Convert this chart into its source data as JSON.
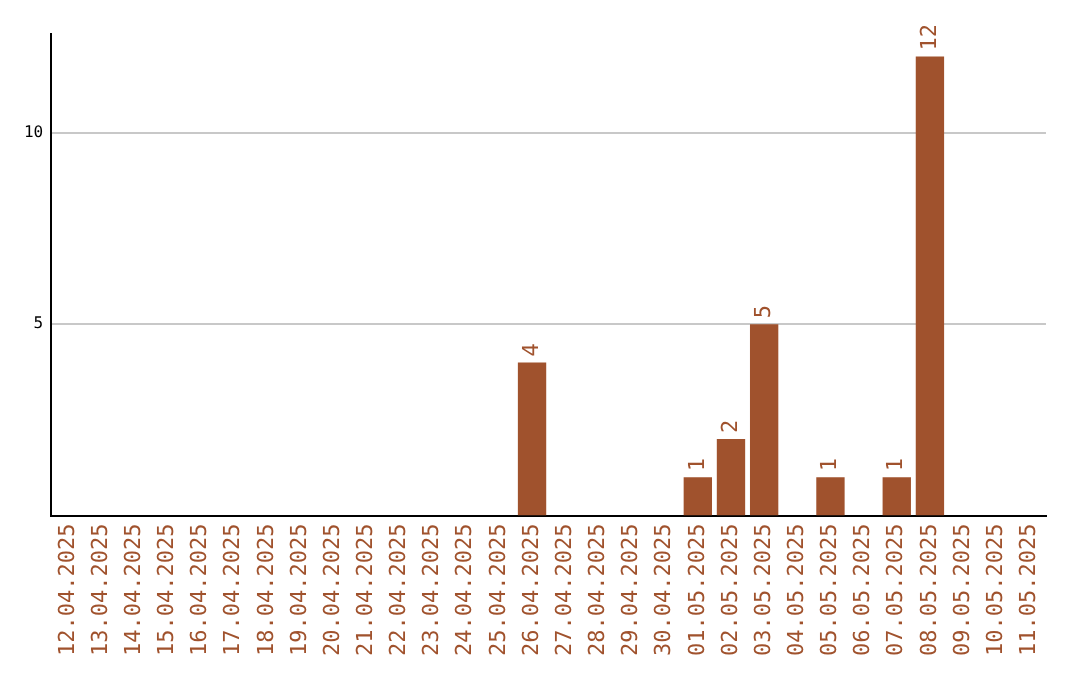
{
  "chart_data": {
    "type": "bar",
    "categories": [
      "12.04.2025",
      "13.04.2025",
      "14.04.2025",
      "15.04.2025",
      "16.04.2025",
      "17.04.2025",
      "18.04.2025",
      "19.04.2025",
      "20.04.2025",
      "21.04.2025",
      "22.04.2025",
      "23.04.2025",
      "24.04.2025",
      "25.04.2025",
      "26.04.2025",
      "27.04.2025",
      "28.04.2025",
      "29.04.2025",
      "30.04.2025",
      "01.05.2025",
      "02.05.2025",
      "03.05.2025",
      "04.05.2025",
      "05.05.2025",
      "06.05.2025",
      "07.05.2025",
      "08.05.2025",
      "09.05.2025",
      "10.05.2025",
      "11.05.2025"
    ],
    "values": [
      null,
      null,
      null,
      null,
      null,
      null,
      null,
      null,
      null,
      null,
      null,
      null,
      null,
      null,
      4,
      null,
      null,
      null,
      null,
      1,
      2,
      5,
      null,
      1,
      null,
      1,
      12,
      null,
      null,
      null
    ],
    "color": "#a0522d",
    "ylim": [
      0,
      12.6
    ],
    "yticks": [
      5,
      10
    ],
    "grid": "y",
    "data_labels": true,
    "legend": false
  }
}
